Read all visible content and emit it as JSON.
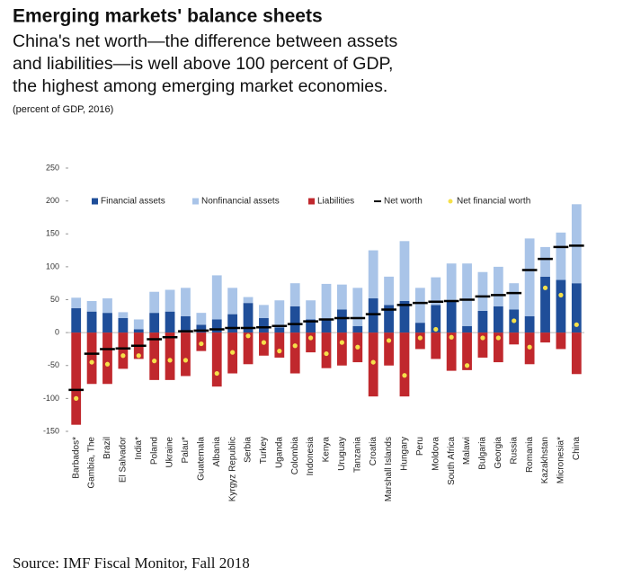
{
  "chart_data": {
    "type": "bar",
    "title": "Emerging markets' balance sheets",
    "subtitle": [
      "China's net worth—the difference between assets",
      "and liabilities—is well above 100 percent of GDP,",
      "the highest among emerging market economies."
    ],
    "note": "(percent of GDP, 2016)",
    "source": "Source: IMF Fiscal Monitor, Fall 2018",
    "categories": [
      "Barbados*",
      "Gambia, The",
      "Brazil",
      "El Salvador",
      "India*",
      "Poland",
      "Ukraine",
      "Palau*",
      "Guatemala",
      "Albania",
      "Kyrgyz Republic",
      "Serbia",
      "Turkey",
      "Uganda",
      "Colombia",
      "Indonesia",
      "Kenya",
      "Uruguay",
      "Tanzania",
      "Croatia",
      "Marshall Islands",
      "Hungary",
      "Peru",
      "Moldova",
      "South Africa",
      "Malawi",
      "Bulgaria",
      "Georgia",
      "Russia",
      "Romania",
      "Kazakhstan",
      "Micronesia*",
      "China"
    ],
    "series": [
      {
        "name": "Financial assets",
        "color": "#1f4e99",
        "mark": "bar",
        "values": [
          37,
          32,
          30,
          22,
          5,
          30,
          32,
          25,
          12,
          20,
          28,
          45,
          22,
          8,
          40,
          20,
          20,
          35,
          10,
          52,
          42,
          48,
          15,
          42,
          48,
          10,
          33,
          40,
          35,
          25,
          85,
          80,
          75
        ]
      },
      {
        "name": "Nonfinancial assets",
        "color": "#a9c4e8",
        "mark": "bar",
        "values": [
          16,
          16,
          22,
          9,
          15,
          32,
          33,
          43,
          18,
          67,
          40,
          9,
          20,
          41,
          35,
          29,
          54,
          38,
          58,
          73,
          43,
          91,
          53,
          42,
          57,
          95,
          59,
          60,
          40,
          118,
          45,
          72,
          120
        ]
      },
      {
        "name": "Liabilities",
        "color": "#c0282d",
        "mark": "bar",
        "values": [
          -140,
          -78,
          -78,
          -55,
          -40,
          -72,
          -72,
          -66,
          -28,
          -82,
          -62,
          -48,
          -35,
          -38,
          -62,
          -30,
          -54,
          -50,
          -45,
          -97,
          -50,
          -97,
          -25,
          -40,
          -58,
          -57,
          -38,
          -45,
          -18,
          -48,
          -15,
          -25,
          -63
        ]
      },
      {
        "name": "Net worth",
        "color": "#000000",
        "mark": "dash",
        "values": [
          -87,
          -32,
          -25,
          -24,
          -20,
          -10,
          -7,
          2,
          3,
          5,
          7,
          7,
          8,
          10,
          13,
          17,
          20,
          22,
          22,
          28,
          35,
          42,
          45,
          47,
          48,
          50,
          55,
          57,
          60,
          95,
          112,
          130,
          132
        ]
      },
      {
        "name": "Net financial worth",
        "color": "#f5e04a",
        "mark": "dot",
        "values": [
          -100,
          -45,
          -48,
          -35,
          -35,
          -43,
          -42,
          -42,
          -17,
          -62,
          -30,
          -5,
          -15,
          -28,
          -20,
          -8,
          -32,
          -15,
          -22,
          -45,
          -12,
          -65,
          -8,
          5,
          -7,
          -50,
          -8,
          -8,
          18,
          -22,
          68,
          57,
          12
        ]
      }
    ],
    "ylim": [
      -150,
      250
    ],
    "yticks": [
      -150,
      -100,
      -50,
      0,
      50,
      100,
      150,
      200,
      250
    ]
  }
}
